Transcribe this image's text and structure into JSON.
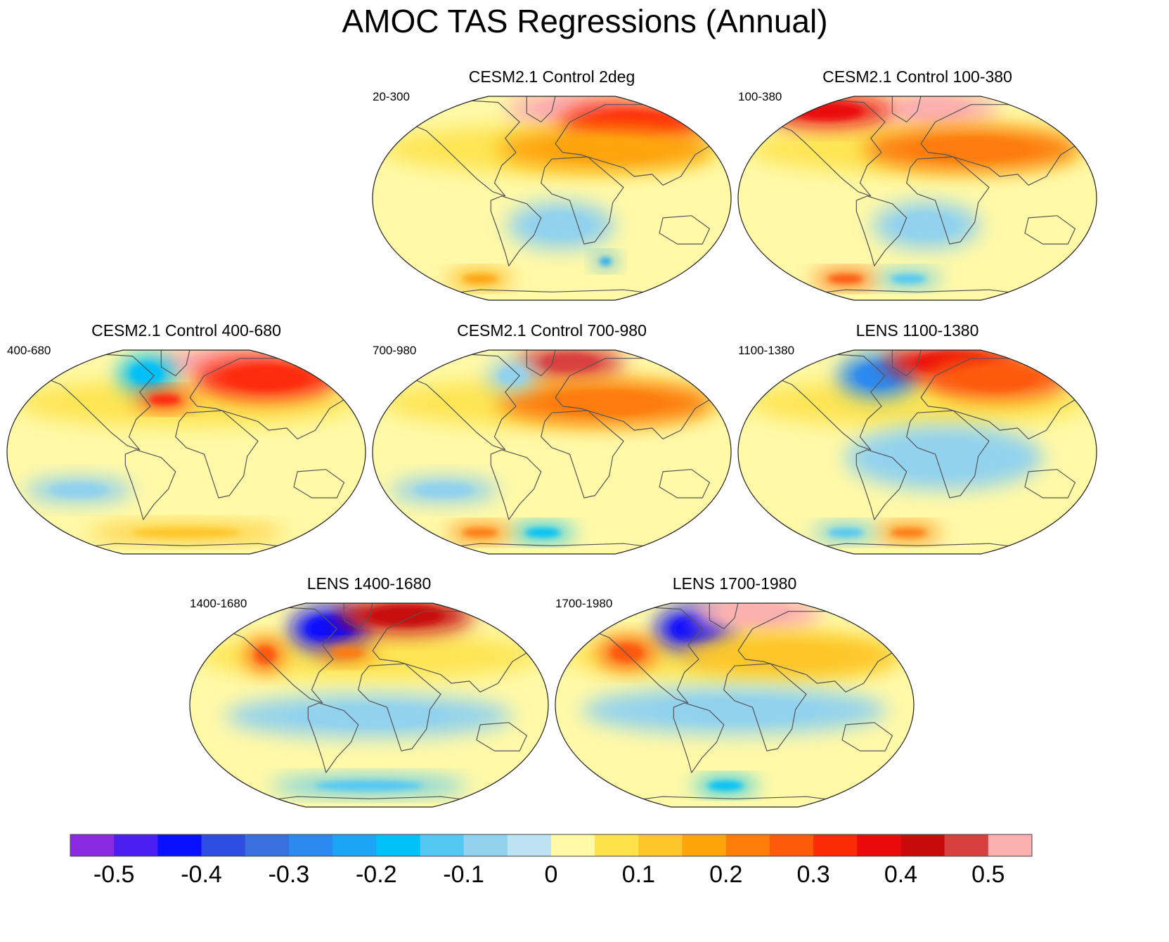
{
  "chart_data": {
    "type": "heatmap",
    "title": "AMOC TAS Regressions (Annual)",
    "projection": "Robinson (global, Atlantic-centred)",
    "units_note": "",
    "colorbar": {
      "levels": [
        -0.55,
        -0.5,
        -0.45,
        -0.4,
        -0.35,
        -0.3,
        -0.25,
        -0.2,
        -0.15,
        -0.1,
        -0.05,
        0,
        0.05,
        0.1,
        0.15,
        0.2,
        0.25,
        0.3,
        0.35,
        0.4,
        0.45,
        0.5,
        0.55
      ],
      "tick_values": [
        -0.5,
        -0.4,
        -0.3,
        -0.2,
        -0.1,
        0,
        0.1,
        0.2,
        0.3,
        0.4,
        0.5
      ],
      "tick_labels": [
        "-0.5",
        "-0.4",
        "-0.3",
        "-0.2",
        "-0.1",
        "0",
        "0.1",
        "0.2",
        "0.3",
        "0.4",
        "0.5"
      ],
      "colors": [
        "#8a2be2",
        "#4b1ff0",
        "#0a10ff",
        "#2f4de0",
        "#3a6fe0",
        "#2a8af0",
        "#1ea4f6",
        "#00c0f8",
        "#55c8f2",
        "#92d2ee",
        "#bde3f3",
        "#fff9a8",
        "#fde24a",
        "#fdc62a",
        "#fda40a",
        "#fd7c0a",
        "#fd5a08",
        "#fd2a08",
        "#ea0a0a",
        "#c80a0a",
        "#d84040",
        "#fcb0b0"
      ]
    },
    "panels": [
      {
        "title": "CESM2.1 Control 2deg",
        "corner_label": "20-300",
        "features": [
          {
            "region": "North Atlantic / Nordic Seas",
            "value": 0.55
          },
          {
            "region": "Eurasian Arctic",
            "value": 0.3
          },
          {
            "region": "Northern Hemisphere land",
            "value": 0.15
          },
          {
            "region": "South Atlantic",
            "value": -0.08
          },
          {
            "region": "Southern Ocean (Indian sector)",
            "value": -0.25
          },
          {
            "region": "Southern Ocean (Pacific sector)",
            "value": 0.15
          }
        ]
      },
      {
        "title": "CESM2.1 Control 100-380",
        "corner_label": "100-380",
        "features": [
          {
            "region": "North Atlantic / Nordic Seas",
            "value": 0.55
          },
          {
            "region": "Arctic (Canada / Alaska)",
            "value": 0.35
          },
          {
            "region": "Northern Hemisphere land",
            "value": 0.2
          },
          {
            "region": "South Atlantic",
            "value": -0.08
          },
          {
            "region": "Southern Ocean (Pacific sector)",
            "value": 0.25
          },
          {
            "region": "Southern Ocean (Atlantic sector)",
            "value": -0.15
          }
        ]
      },
      {
        "title": "CESM2.1 Control 400-680",
        "corner_label": "400-680",
        "features": [
          {
            "region": "Nordic Seas / Barents",
            "value": 0.55
          },
          {
            "region": "Labrador Sea / Baffin",
            "value": -0.2
          },
          {
            "region": "Gulf Stream extension",
            "value": 0.3
          },
          {
            "region": "Eurasian Arctic",
            "value": 0.3
          },
          {
            "region": "South Pacific",
            "value": -0.08
          },
          {
            "region": "Southern Ocean",
            "value": 0.1
          }
        ]
      },
      {
        "title": "CESM2.1 Control 700-980",
        "corner_label": "700-980",
        "features": [
          {
            "region": "Nordic Seas",
            "value": 0.45
          },
          {
            "region": "Northern Hemisphere land",
            "value": 0.2
          },
          {
            "region": "Labrador Sea",
            "value": -0.1
          },
          {
            "region": "South Pacific",
            "value": -0.08
          },
          {
            "region": "Southern Ocean (Atlantic sector)",
            "value": -0.2
          },
          {
            "region": "Southern Ocean (Pacific sector)",
            "value": 0.2
          }
        ]
      },
      {
        "title": "LENS 1100-1380",
        "corner_label": "1100-1380",
        "features": [
          {
            "region": "Labrador Sea / Subpolar gyre",
            "value": -0.3
          },
          {
            "region": "Nordic Seas / Barents",
            "value": 0.35
          },
          {
            "region": "Eurasian Arctic",
            "value": 0.25
          },
          {
            "region": "Tropical Atlantic / Indian Ocean",
            "value": -0.08
          },
          {
            "region": "Southern Ocean (Atlantic sector)",
            "value": 0.2
          },
          {
            "region": "Southern Ocean (Pacific sector)",
            "value": -0.12
          }
        ]
      },
      {
        "title": "LENS 1400-1680",
        "corner_label": "1400-1680",
        "features": [
          {
            "region": "Labrador Sea / Subpolar gyre",
            "value": -0.45
          },
          {
            "region": "Nordic Seas / Barents",
            "value": 0.4
          },
          {
            "region": "Gulf Stream extension",
            "value": 0.2
          },
          {
            "region": "Northwest North America",
            "value": 0.25
          },
          {
            "region": "Tropical oceans",
            "value": -0.08
          },
          {
            "region": "Southern Ocean",
            "value": -0.15
          }
        ]
      },
      {
        "title": "LENS 1700-1980",
        "corner_label": "1700-1980",
        "features": [
          {
            "region": "Labrador Sea / Subpolar gyre",
            "value": -0.45
          },
          {
            "region": "Nordic Seas / Greenland Sea",
            "value": 0.55
          },
          {
            "region": "Western North America / Pacific",
            "value": 0.25
          },
          {
            "region": "Northern Hemisphere land",
            "value": 0.1
          },
          {
            "region": "Tropical Pacific / Indian Ocean",
            "value": -0.08
          },
          {
            "region": "Southern Ocean (Atlantic sector)",
            "value": -0.2
          }
        ]
      }
    ]
  }
}
